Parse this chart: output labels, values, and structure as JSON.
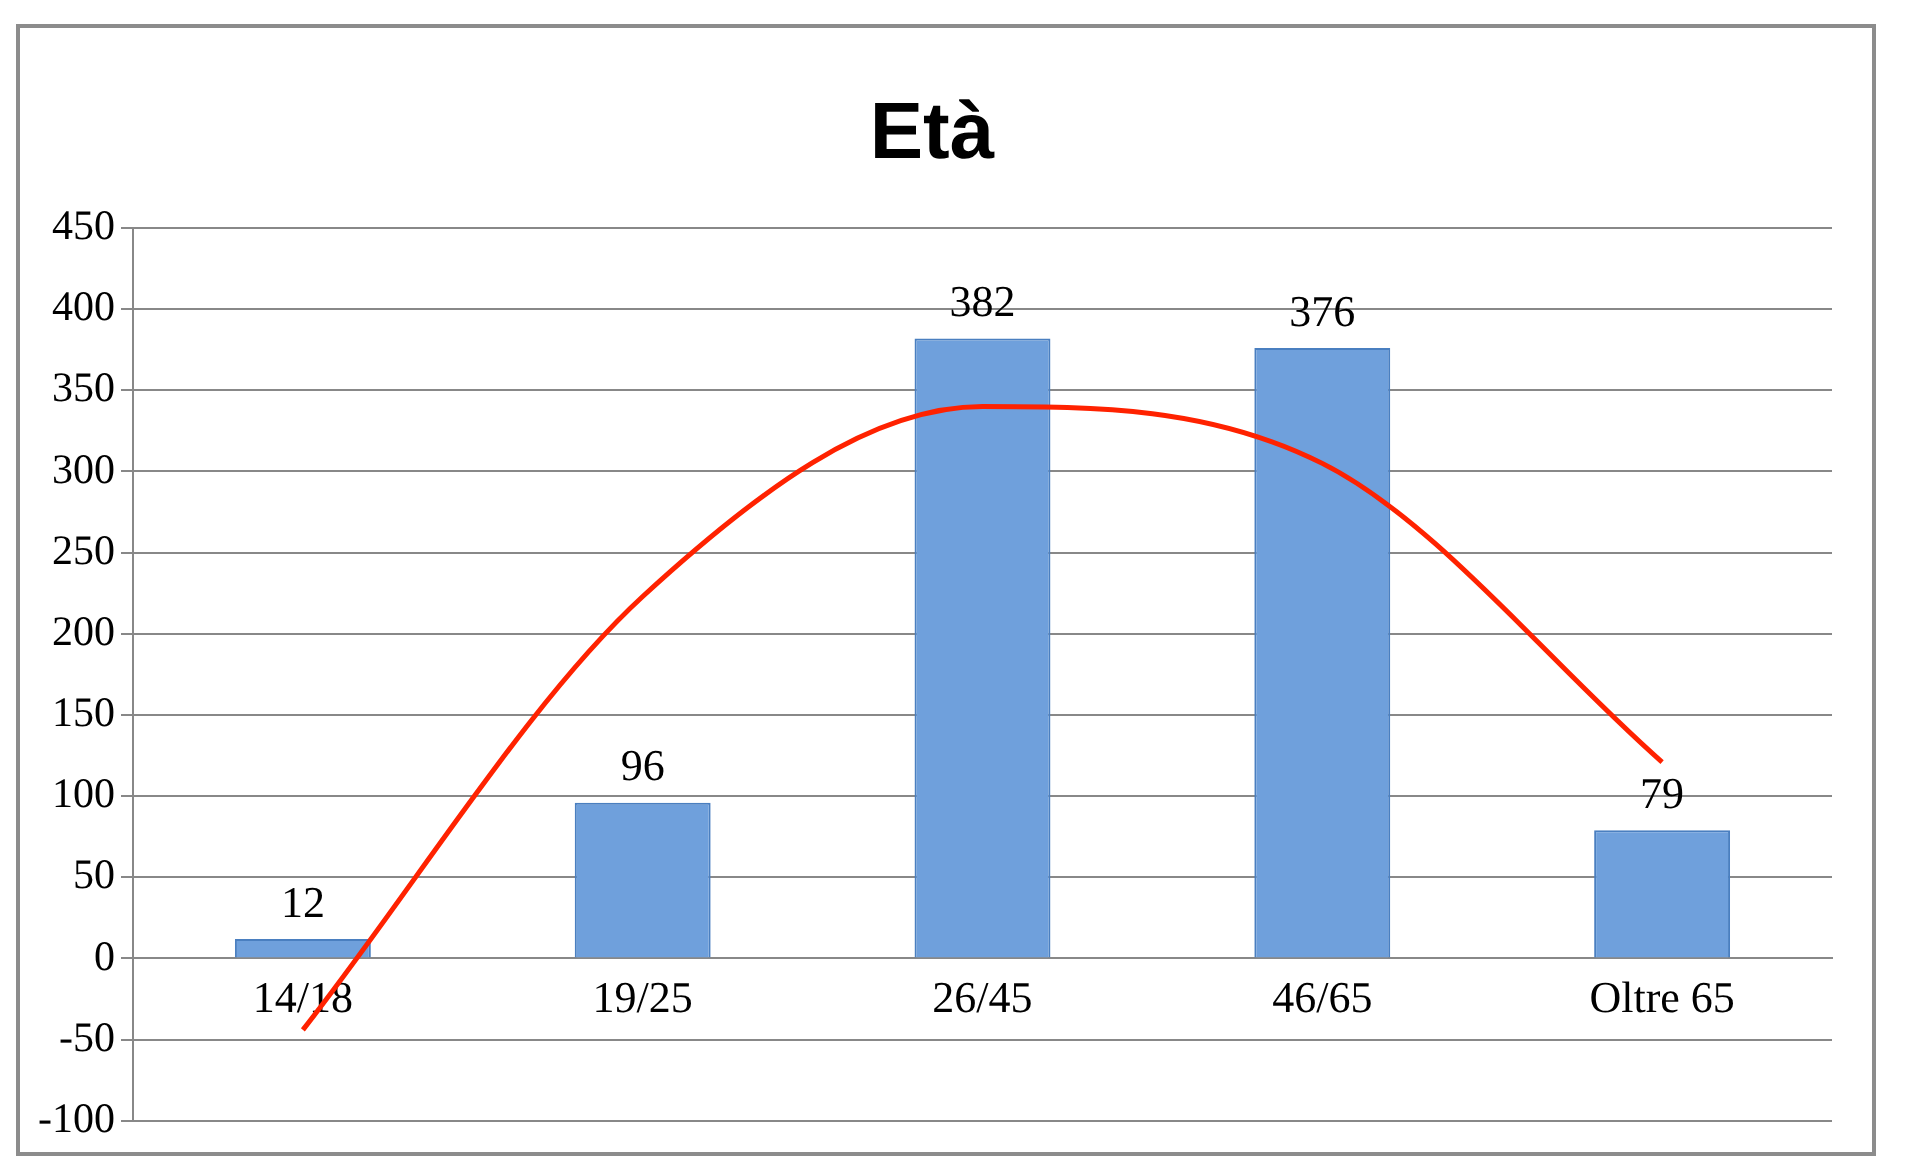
{
  "chart_data": {
    "type": "bar",
    "title": "Età",
    "categories": [
      "14/18",
      "19/25",
      "26/45",
      "46/65",
      "Oltre 65"
    ],
    "series": [
      {
        "color": "#6fa0dc",
        "values": [
          12,
          96,
          382,
          376,
          79
        ],
        "value_labels": [
          "12",
          "96",
          "382",
          "376",
          "79"
        ]
      },
      {
        "type": "line",
        "color": "#ff2200",
        "values": [
          -44,
          223,
          340,
          305,
          121
        ],
        "marker": "none"
      }
    ],
    "ylim": [
      -100,
      450
    ],
    "yticks": [
      -100,
      -50,
      0,
      50,
      100,
      150,
      200,
      250,
      300,
      350,
      400,
      450
    ],
    "grid": "y",
    "legend": false
  }
}
